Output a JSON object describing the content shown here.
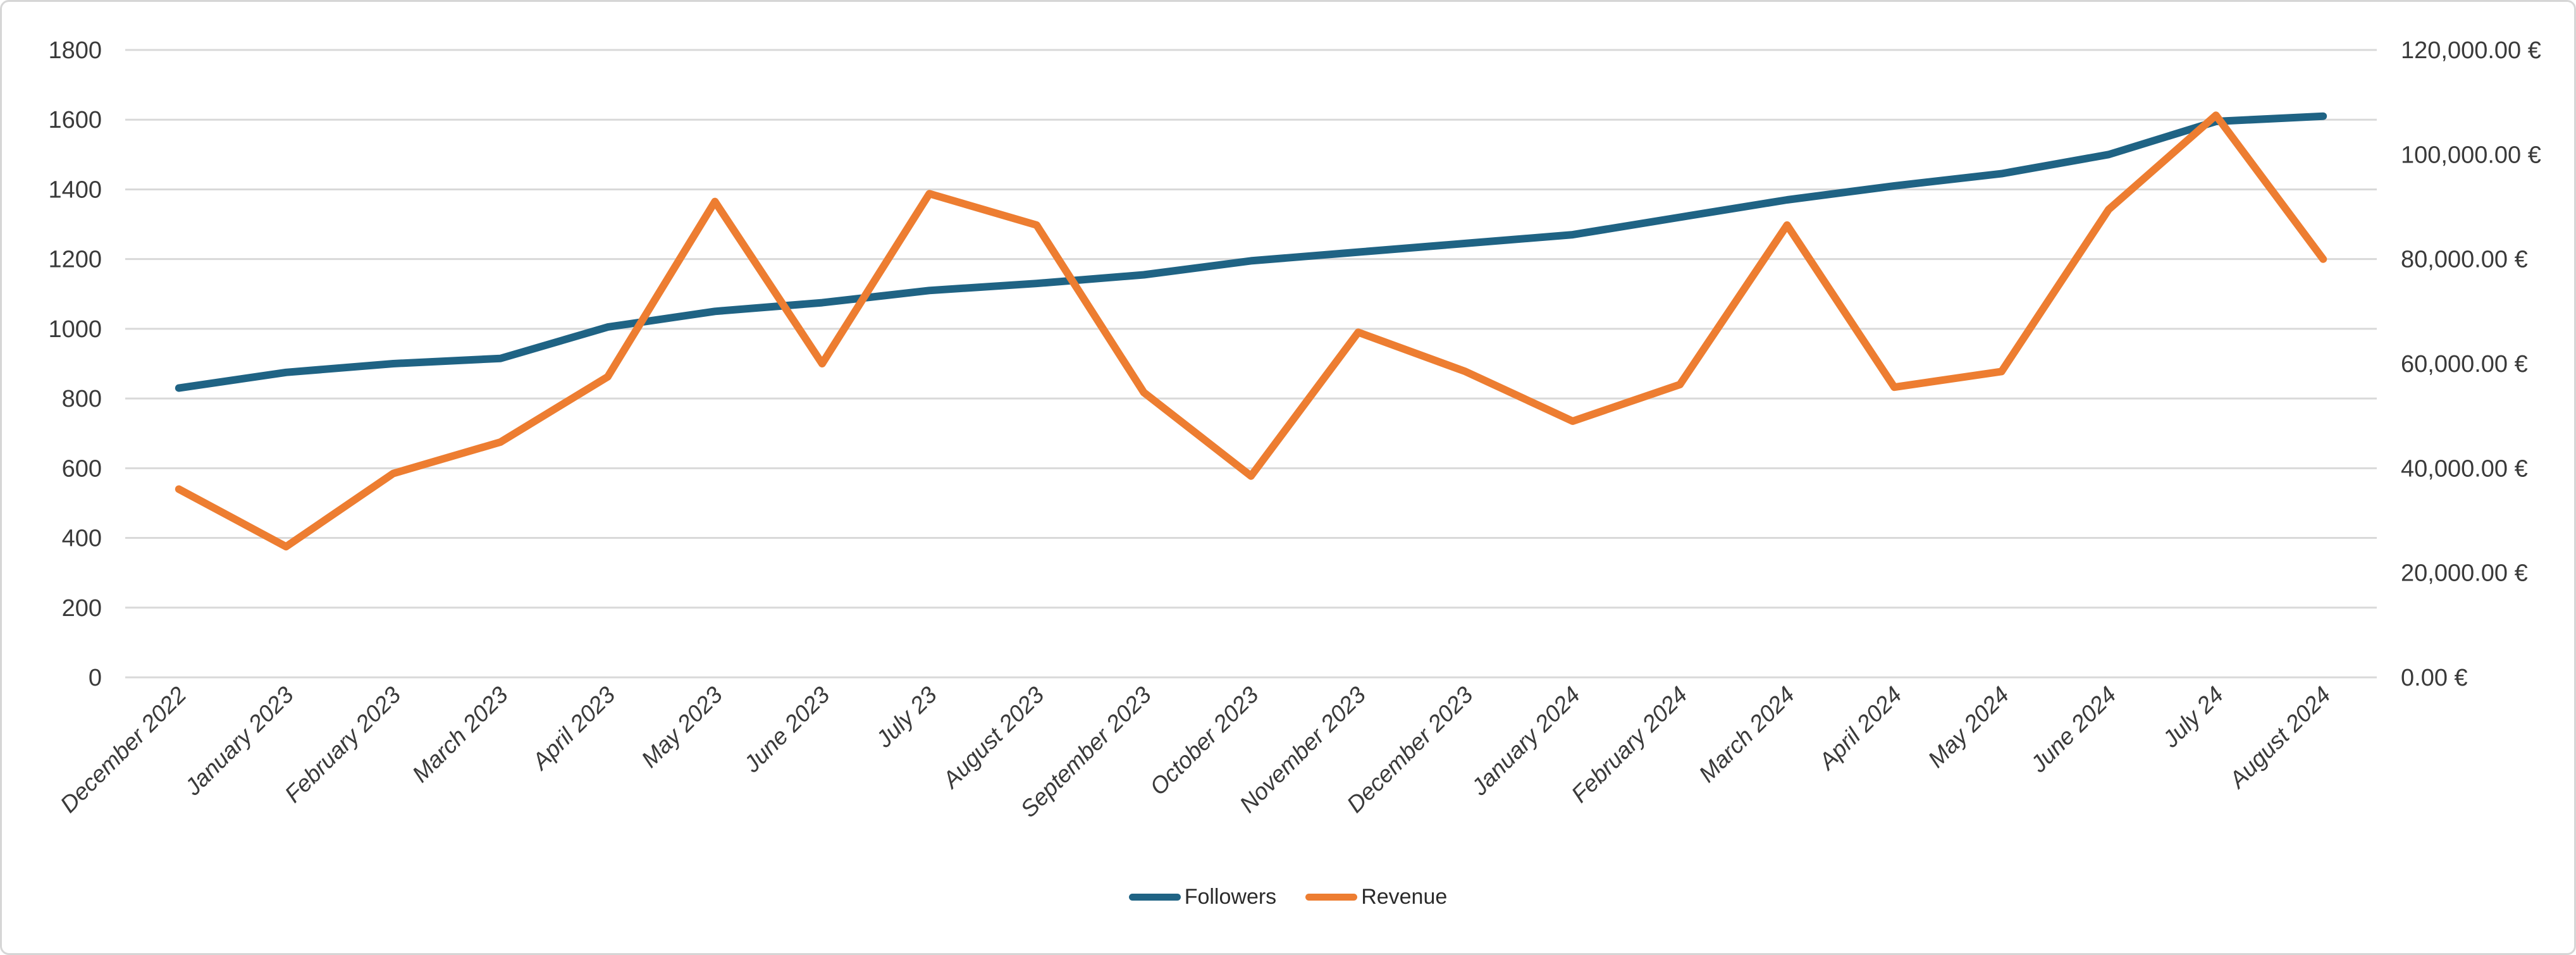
{
  "chart_data": {
    "type": "line",
    "title": "",
    "xlabel": "",
    "ylabel_left": "",
    "ylabel_right": "",
    "grid": true,
    "legend_position": "bottom-center",
    "categories": [
      "December 2022",
      "January 2023",
      "February 2023",
      "March 2023",
      "April 2023",
      "May 2023",
      "June 2023",
      "July 23",
      "August 2023",
      "September 2023",
      "October 2023",
      "November 2023",
      "December 2023",
      "January 2024",
      "February 2024",
      "March 2024",
      "April 2024",
      "May 2024",
      "June 2024",
      "July 24",
      "August 2024"
    ],
    "series": [
      {
        "name": "Followers",
        "axis": "left",
        "color": "#1f6384",
        "values": [
          830,
          875,
          900,
          915,
          1005,
          1050,
          1075,
          1110,
          1130,
          1155,
          1195,
          1220,
          1245,
          1270,
          1320,
          1370,
          1410,
          1445,
          1500,
          1595,
          1610
        ]
      },
      {
        "name": "Revenue",
        "axis": "right",
        "color": "#ed7d31",
        "values": [
          36000,
          25000,
          39000,
          45000,
          57500,
          91000,
          60000,
          92500,
          86500,
          54500,
          38500,
          66000,
          58500,
          49000,
          56000,
          86500,
          55500,
          58500,
          89500,
          107500,
          80000
        ]
      }
    ],
    "left_axis": {
      "min": 0,
      "max": 1800,
      "step": 200,
      "tick_labels": [
        "0",
        "200",
        "400",
        "600",
        "800",
        "1000",
        "1200",
        "1400",
        "1600",
        "1800"
      ]
    },
    "right_axis": {
      "min": 0,
      "max": 120000,
      "step": 20000,
      "tick_labels": [
        "0.00 €",
        "20,000.00 €",
        "40,000.00 €",
        "60,000.00 €",
        "80,000.00 €",
        "100,000.00 €",
        "120,000.00 €"
      ]
    },
    "gridline_color": "#d9d9d9"
  },
  "legend": {
    "followers_label": "Followers",
    "revenue_label": "Revenue"
  }
}
